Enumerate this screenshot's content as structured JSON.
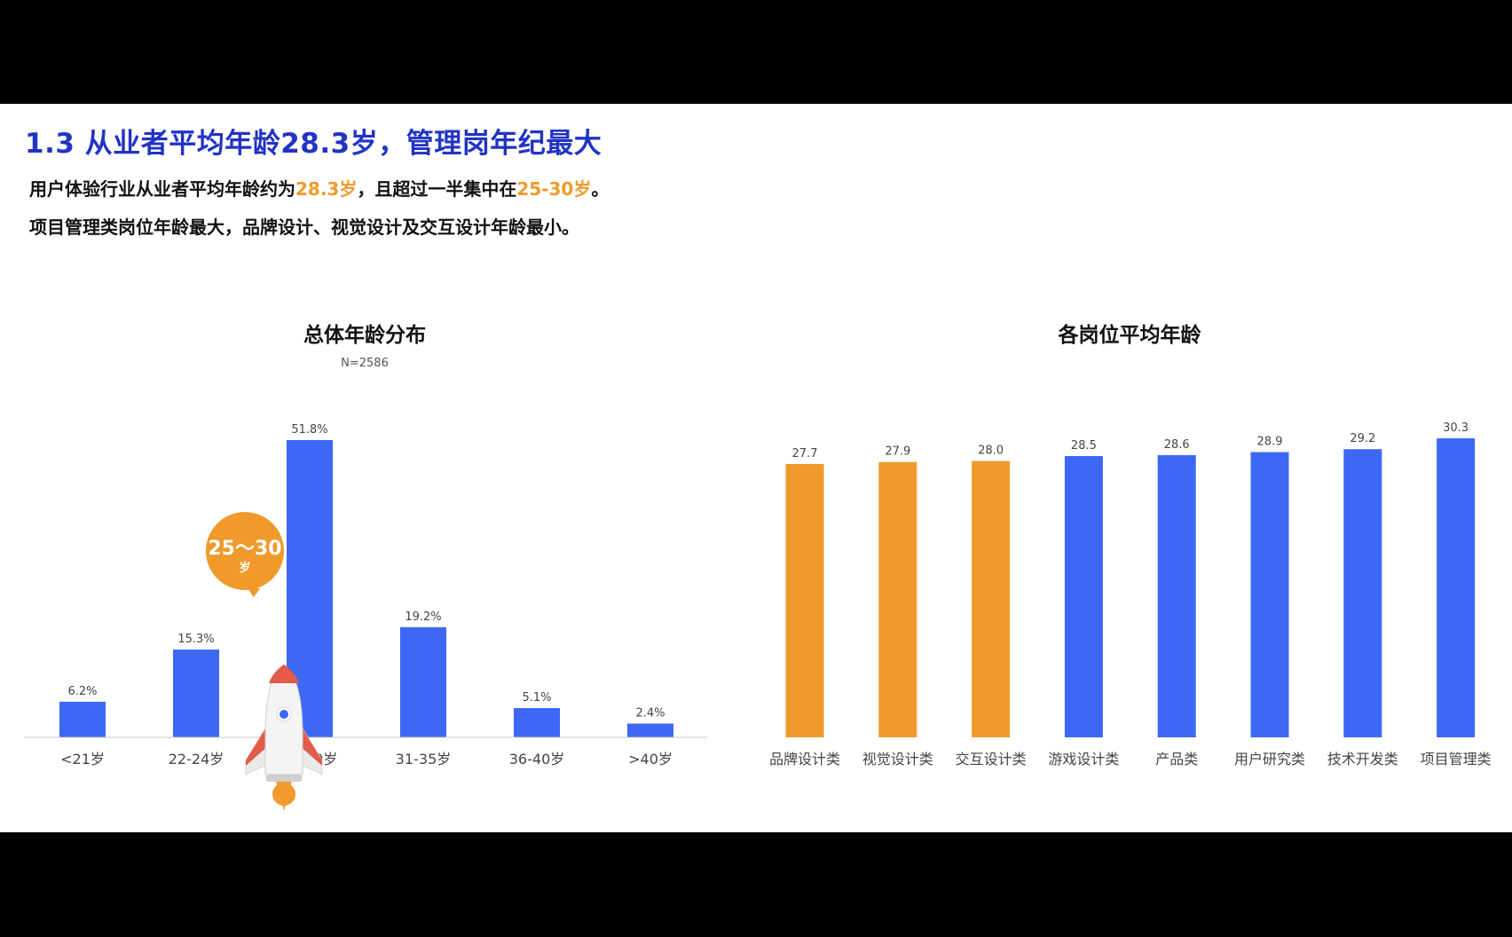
{
  "slide": {
    "title": "1.3 从业者平均年龄28.3岁，管理岗年纪最大",
    "summary": {
      "line1_a": "用户体验行业从业者平均年龄约为",
      "line1_avg": "28.3岁",
      "line1_b": "，且超过一半集中在",
      "line1_range": "25-30岁",
      "line1_c": "。",
      "line2": "项目管理类岗位年龄最大，品牌设计、视觉设计及交互设计年龄最小。"
    }
  },
  "colors": {
    "title": "#2233c4",
    "blue": "#3d67f5",
    "orange": "#ef9a2b",
    "axis": "#c8c8c8",
    "label": "#444444"
  },
  "callout": {
    "range": "25～30",
    "unit": "岁",
    "icon": "rocket-icon"
  },
  "chart_data": [
    {
      "type": "bar",
      "title": "总体年龄分布",
      "subtitle": "N=2586",
      "categories": [
        "<21岁",
        "22-24岁",
        "25-30岁",
        "31-35岁",
        "36-40岁",
        ">40岁"
      ],
      "values": [
        6.2,
        15.3,
        51.8,
        19.2,
        5.1,
        2.4
      ],
      "value_labels": [
        "6.2%",
        "15.3%",
        "51.8%",
        "19.2%",
        "5.1%",
        "2.4%"
      ],
      "unit": "%",
      "ylim": [
        0,
        51.8
      ],
      "bar_color": "#3d67f5",
      "grid": false
    },
    {
      "type": "bar",
      "title": "各岗位平均年龄",
      "categories": [
        "品牌设计类",
        "视觉设计类",
        "交互设计类",
        "游戏设计类",
        "产品类",
        "用户研究类",
        "技术开发类",
        "项目管理类"
      ],
      "values": [
        27.7,
        27.9,
        28.0,
        28.5,
        28.6,
        28.9,
        29.2,
        30.3
      ],
      "value_labels": [
        "27.7",
        "27.9",
        "28.0",
        "28.5",
        "28.6",
        "28.9",
        "29.2",
        "30.3"
      ],
      "bar_colors": [
        "#ef9a2b",
        "#ef9a2b",
        "#ef9a2b",
        "#3d67f5",
        "#3d67f5",
        "#3d67f5",
        "#3d67f5",
        "#3d67f5"
      ],
      "ylim": [
        0,
        30.3
      ],
      "grid": false
    }
  ]
}
